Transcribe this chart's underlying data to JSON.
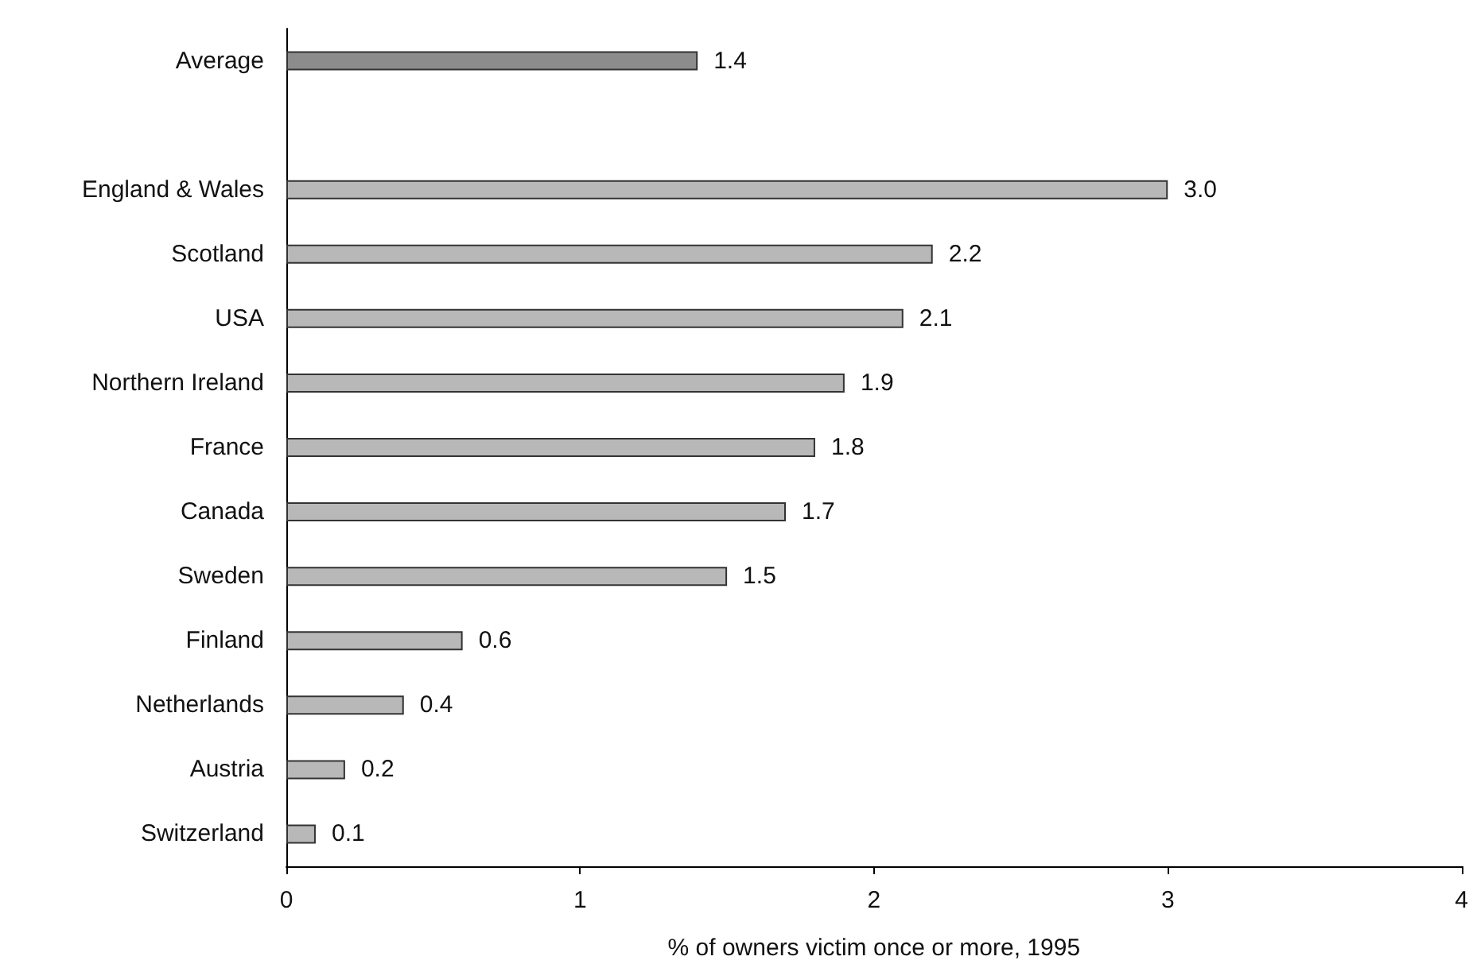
{
  "chart_data": {
    "type": "bar",
    "orientation": "horizontal",
    "categories": [
      "Average",
      null,
      "England & Wales",
      "Scotland",
      "USA",
      "Northern Ireland",
      "France",
      "Canada",
      "Sweden",
      "Finland",
      "Netherlands",
      "Austria",
      "Switzerland"
    ],
    "values": [
      1.4,
      null,
      3.0,
      2.2,
      2.1,
      1.9,
      1.8,
      1.7,
      1.5,
      0.6,
      0.4,
      0.2,
      0.1
    ],
    "colors": [
      "#8c8c8c",
      null,
      "#b8b8b8",
      "#b8b8b8",
      "#b8b8b8",
      "#b8b8b8",
      "#b8b8b8",
      "#b8b8b8",
      "#b8b8b8",
      "#b8b8b8",
      "#b8b8b8",
      "#b8b8b8",
      "#b8b8b8"
    ],
    "value_labels": [
      "1.4",
      null,
      "3.0",
      "2.2",
      "2.1",
      "1.9",
      "1.8",
      "1.7",
      "1.5",
      "0.6",
      "0.4",
      "0.2",
      "0.1"
    ],
    "xlabel": "% of owners victim once or more, 1995",
    "xlim": [
      0,
      4
    ],
    "xticks": [
      0,
      1,
      2,
      3,
      4
    ],
    "grid": false
  }
}
